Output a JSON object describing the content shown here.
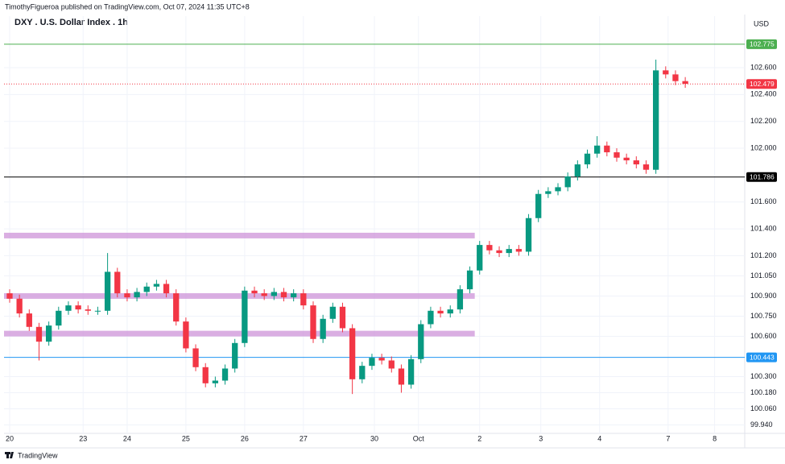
{
  "header": "TimothyFigueroa published on TradingView.com, Oct 07, 2024 11:35 UTC+8",
  "footer": "TradingView",
  "chart_data": {
    "type": "candlestick",
    "title": "DXY . U.S. Dollar Index . 1h",
    "y_unit": "USD",
    "up_color": "#089981",
    "down_color": "#f23645",
    "grid": true,
    "xlim": [
      -2.3,
      300.3
    ],
    "ylim": [
      99.877,
      102.984
    ],
    "xticks": [
      {
        "value": 0,
        "label": "20"
      },
      {
        "value": 30,
        "label": "23"
      },
      {
        "value": 48,
        "label": "24"
      },
      {
        "value": 72,
        "label": "25"
      },
      {
        "value": 96,
        "label": "26"
      },
      {
        "value": 120,
        "label": "27"
      },
      {
        "value": 149,
        "label": "30"
      },
      {
        "value": 167,
        "label": "Oct"
      },
      {
        "value": 192,
        "label": "2"
      },
      {
        "value": 217,
        "label": "3"
      },
      {
        "value": 241,
        "label": "4"
      },
      {
        "value": 269,
        "label": "7"
      },
      {
        "value": 288,
        "label": "8"
      }
    ],
    "yticks": [
      {
        "value": 102.6,
        "label": "102.600"
      },
      {
        "value": 102.4,
        "label": "102.400"
      },
      {
        "value": 102.2,
        "label": "102.200"
      },
      {
        "value": 102.0,
        "label": "102.000"
      },
      {
        "value": 101.6,
        "label": "101.600"
      },
      {
        "value": 101.4,
        "label": "101.400"
      },
      {
        "value": 101.2,
        "label": "101.200"
      },
      {
        "value": 101.05,
        "label": "101.050"
      },
      {
        "value": 100.9,
        "label": "100.900"
      },
      {
        "value": 100.75,
        "label": "100.750"
      },
      {
        "value": 100.6,
        "label": "100.600"
      },
      {
        "value": 100.3,
        "label": "100.300"
      },
      {
        "value": 100.18,
        "label": "100.180"
      },
      {
        "value": 100.06,
        "label": "100.060"
      },
      {
        "value": 99.94,
        "label": "99.940"
      }
    ],
    "price_lines": [
      {
        "value": 102.775,
        "color": "#4caf50",
        "dash": "solid"
      },
      {
        "value": 102.479,
        "color": "#f23645",
        "dash": "dotted"
      },
      {
        "value": 101.786,
        "color": "#000000",
        "dash": "solid"
      },
      {
        "value": 100.443,
        "color": "#2196f3",
        "dash": "solid"
      }
    ],
    "zones": [
      {
        "value": 101.35,
        "x_end": 190,
        "color": "#ce93d8"
      },
      {
        "value": 100.9,
        "x_end": 190,
        "color": "#ce93d8"
      },
      {
        "value": 100.62,
        "x_end": 190,
        "color": "#ce93d8"
      }
    ],
    "x": [
      0,
      4,
      8,
      12,
      16,
      20,
      24,
      28,
      32,
      36,
      40,
      44,
      48,
      52,
      56,
      60,
      64,
      68,
      72,
      76,
      80,
      84,
      88,
      92,
      96,
      100,
      104,
      108,
      112,
      116,
      120,
      124,
      128,
      132,
      136,
      140,
      144,
      148,
      152,
      156,
      160,
      164,
      168,
      172,
      176,
      180,
      184,
      188,
      192,
      196,
      200,
      204,
      208,
      212,
      216,
      220,
      224,
      228,
      232,
      236,
      240,
      244,
      248,
      252,
      256,
      260,
      264,
      268,
      272,
      276
    ],
    "open": [
      100.92,
      100.88,
      100.77,
      100.67,
      100.56,
      100.68,
      100.79,
      100.83,
      100.8,
      100.79,
      100.79,
      101.08,
      100.92,
      100.89,
      100.93,
      100.97,
      100.99,
      100.92,
      100.71,
      100.51,
      100.37,
      100.25,
      100.27,
      100.36,
      100.55,
      100.94,
      100.92,
      100.9,
      100.93,
      100.89,
      100.92,
      100.83,
      100.58,
      100.73,
      100.82,
      100.66,
      100.28,
      100.38,
      100.44,
      100.42,
      100.36,
      100.24,
      100.43,
      100.69,
      100.79,
      100.77,
      100.8,
      100.95,
      101.09,
      101.28,
      101.24,
      101.22,
      101.25,
      101.23,
      101.48,
      101.66,
      101.68,
      101.71,
      101.79,
      101.88,
      101.96,
      102.02,
      101.97,
      101.93,
      101.91,
      101.88,
      101.84,
      102.58,
      102.55,
      102.5
    ],
    "high": [
      100.95,
      100.91,
      100.8,
      100.7,
      100.71,
      100.82,
      100.86,
      100.86,
      100.83,
      100.82,
      101.22,
      101.11,
      100.95,
      100.96,
      101.0,
      101.02,
      101.02,
      100.95,
      100.74,
      100.54,
      100.4,
      100.3,
      100.39,
      100.58,
      100.97,
      100.97,
      100.95,
      100.96,
      100.96,
      100.95,
      100.95,
      100.86,
      100.76,
      100.85,
      100.85,
      100.69,
      100.41,
      100.47,
      100.47,
      100.45,
      100.39,
      100.46,
      100.72,
      100.82,
      100.82,
      100.83,
      100.98,
      101.12,
      101.31,
      101.31,
      101.27,
      101.28,
      101.28,
      101.51,
      101.69,
      101.71,
      101.74,
      101.82,
      101.91,
      101.99,
      102.09,
      102.05,
      102.0,
      101.96,
      101.94,
      101.91,
      102.66,
      102.61,
      102.58,
      102.53
    ],
    "low": [
      100.85,
      100.74,
      100.64,
      100.42,
      100.53,
      100.65,
      100.76,
      100.77,
      100.76,
      100.76,
      100.76,
      100.89,
      100.86,
      100.86,
      100.9,
      100.94,
      100.89,
      100.68,
      100.48,
      100.34,
      100.22,
      100.22,
      100.24,
      100.33,
      100.52,
      100.89,
      100.87,
      100.87,
      100.86,
      100.86,
      100.8,
      100.55,
      100.55,
      100.7,
      100.63,
      100.17,
      100.25,
      100.35,
      100.39,
      100.33,
      100.18,
      100.21,
      100.4,
      100.66,
      100.74,
      100.74,
      100.77,
      100.92,
      101.06,
      101.21,
      101.19,
      101.19,
      101.2,
      101.2,
      101.45,
      101.63,
      101.65,
      101.68,
      101.76,
      101.85,
      101.93,
      101.94,
      101.9,
      101.88,
      101.85,
      101.81,
      101.81,
      102.52,
      102.47,
      102.45
    ],
    "close": [
      100.88,
      100.77,
      100.67,
      100.56,
      100.68,
      100.79,
      100.83,
      100.8,
      100.79,
      100.79,
      101.08,
      100.92,
      100.89,
      100.93,
      100.97,
      100.99,
      100.92,
      100.71,
      100.51,
      100.37,
      100.25,
      100.27,
      100.36,
      100.55,
      100.94,
      100.92,
      100.9,
      100.93,
      100.89,
      100.92,
      100.83,
      100.58,
      100.73,
      100.82,
      100.66,
      100.28,
      100.38,
      100.44,
      100.42,
      100.36,
      100.24,
      100.43,
      100.69,
      100.79,
      100.77,
      100.8,
      100.95,
      101.09,
      101.28,
      101.24,
      101.22,
      101.25,
      101.23,
      101.48,
      101.66,
      101.68,
      101.71,
      101.79,
      101.88,
      101.96,
      102.02,
      101.97,
      101.93,
      101.91,
      101.88,
      101.84,
      102.58,
      102.55,
      102.5,
      102.48
    ]
  }
}
